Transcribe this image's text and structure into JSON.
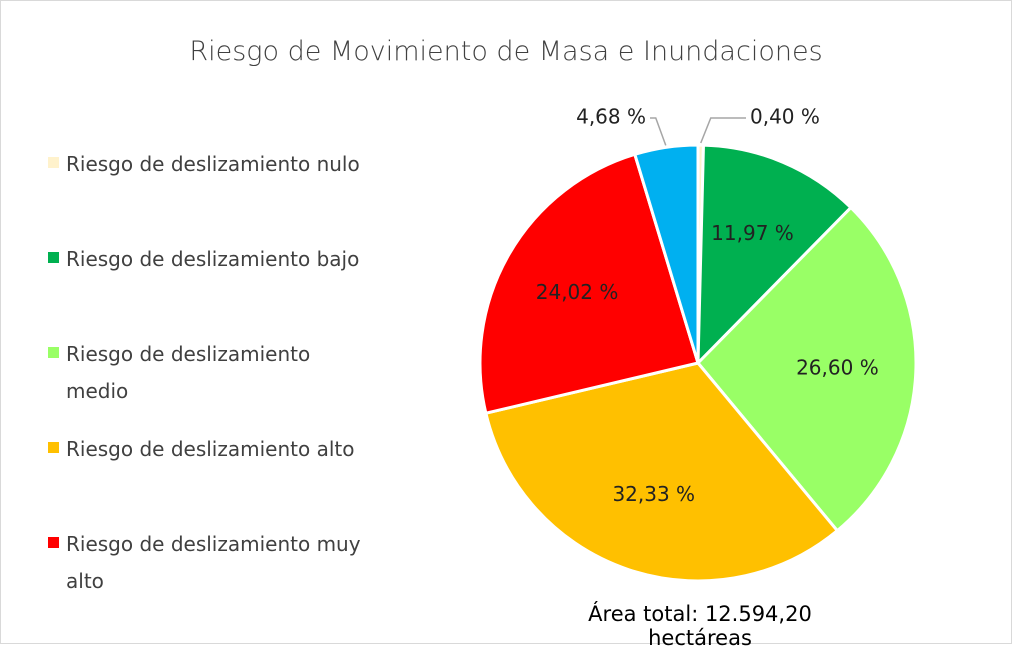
{
  "chart_data": {
    "type": "pie",
    "title": "Riesgo de Movimiento de Masa e Inundaciones",
    "annotation": "Área total: 12.594,20 hectáreas",
    "categories": [
      "Riesgo de deslizamiento nulo",
      "Riesgo de deslizamiento bajo",
      "Riesgo de deslizamiento medio",
      "Riesgo de deslizamiento alto",
      "Riesgo de deslizamiento muy alto",
      null
    ],
    "values": [
      0.4,
      11.97,
      26.6,
      32.33,
      24.02,
      4.68
    ],
    "value_labels": [
      "0,40 %",
      "11,97 %",
      "26,60 %",
      "32,33 %",
      "24,02 %",
      "4,68 %"
    ],
    "colors": [
      "#FFF2CC",
      "#00B050",
      "#99FF66",
      "#FFC000",
      "#FF0000",
      "#00B0F0"
    ],
    "legend": "left"
  }
}
